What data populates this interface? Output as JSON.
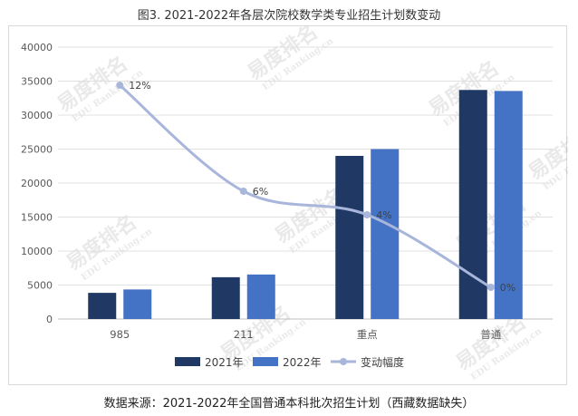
{
  "figure": {
    "title": "图3. 2021-2022年各层次院校数学类专业招生计划数变动",
    "source": "数据来源：2021-2022年全国普通本科批次招生计划（西藏数据缺失）"
  },
  "watermark": {
    "text_cn": "易度排名",
    "text_en": "EDU Ranking.cn"
  },
  "chart_data": {
    "type": "bar",
    "categories": [
      "985",
      "211",
      "重点",
      "普通"
    ],
    "series": [
      {
        "name": "2021年",
        "values": [
          3850,
          6150,
          24000,
          33700
        ],
        "color": "#1f3864"
      },
      {
        "name": "2022年",
        "values": [
          4350,
          6550,
          25000,
          33550
        ],
        "color": "#4472c4"
      }
    ],
    "line_series": {
      "name": "变动幅度",
      "values": [
        12,
        6,
        4,
        0
      ],
      "labels": [
        "12%",
        "6%",
        "4%",
        "0%"
      ],
      "color": "#a9b6dc"
    },
    "ylim": [
      0,
      40000
    ],
    "yticks": [
      0,
      5000,
      10000,
      15000,
      20000,
      25000,
      30000,
      35000,
      40000
    ],
    "grid": true,
    "legend_position": "bottom"
  }
}
